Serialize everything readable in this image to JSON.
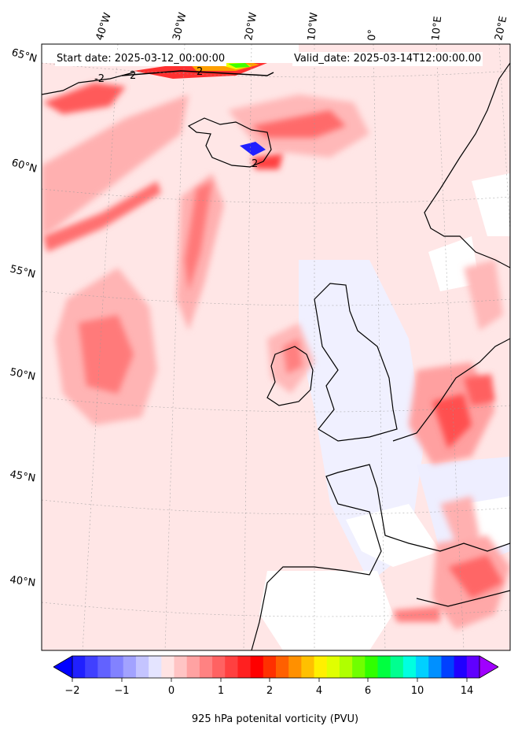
{
  "header": {
    "start_date": "Start date: 2025-03-12_00:00:00",
    "valid_date": "Valid_date: 2025-03-14T12:00:00.00"
  },
  "map": {
    "lon_labels": [
      "40°W",
      "30°W",
      "20°W",
      "10°W",
      "0°",
      "10°E",
      "20°E"
    ],
    "lat_labels": [
      "65°N",
      "60°N",
      "55°N",
      "50°N",
      "45°N",
      "40°N"
    ],
    "contour_labels": [
      "-2",
      "2",
      "2",
      "2"
    ]
  },
  "colorbar": {
    "title": "925 hPa potenital vorticity (PVU)",
    "ticks": [
      "−2",
      "−1",
      "0",
      "1",
      "2",
      "4",
      "6",
      "10",
      "14"
    ],
    "colors": [
      "#0000ff",
      "#2020ff",
      "#4040ff",
      "#6262ff",
      "#8282ff",
      "#a2a2ff",
      "#c4c4ff",
      "#e4e4ff",
      "#ffe4e4",
      "#ffc4c4",
      "#ffa2a2",
      "#ff8282",
      "#ff6262",
      "#ff4040",
      "#ff2020",
      "#ff0000",
      "#ff3000",
      "#ff6000",
      "#ff9000",
      "#ffc000",
      "#fff000",
      "#e0ff00",
      "#b0ff00",
      "#70ff00",
      "#30ff00",
      "#00ff40",
      "#00ff90",
      "#00ffe0",
      "#00d0ff",
      "#0090ff",
      "#0040ff",
      "#2000ff",
      "#6000ff",
      "#a000ff"
    ]
  }
}
